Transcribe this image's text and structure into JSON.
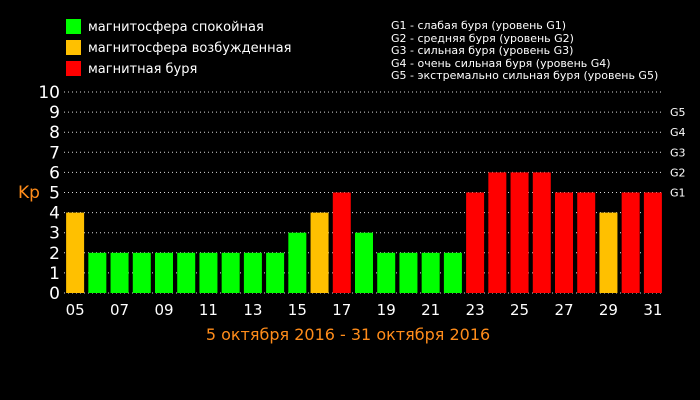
{
  "chart_data": {
    "type": "bar",
    "ylabel": "Kp",
    "ylim": [
      0,
      10
    ],
    "yticks": [
      "0",
      "1",
      "2",
      "3",
      "4",
      "5",
      "6",
      "7",
      "8",
      "9",
      "10"
    ],
    "grid": true,
    "date_range": "5 октября 2016 - 31 октября 2016",
    "categories": [
      "05",
      "06",
      "07",
      "08",
      "09",
      "10",
      "11",
      "12",
      "13",
      "14",
      "15",
      "16",
      "17",
      "18",
      "19",
      "20",
      "21",
      "22",
      "23",
      "24",
      "25",
      "26",
      "27",
      "28",
      "29",
      "30",
      "31"
    ],
    "x_tick_labels": [
      "05",
      "07",
      "09",
      "11",
      "13",
      "15",
      "17",
      "19",
      "21",
      "23",
      "25",
      "27",
      "29",
      "31"
    ],
    "values": [
      4,
      2,
      2,
      2,
      2,
      2,
      2,
      2,
      2,
      2,
      3,
      4,
      5,
      3,
      2,
      2,
      2,
      2,
      5,
      6,
      6,
      6,
      5,
      5,
      4,
      5,
      5
    ],
    "status": [
      "excited",
      "quiet",
      "quiet",
      "quiet",
      "quiet",
      "quiet",
      "quiet",
      "quiet",
      "quiet",
      "quiet",
      "quiet",
      "excited",
      "storm",
      "quiet",
      "quiet",
      "quiet",
      "quiet",
      "quiet",
      "storm",
      "storm",
      "storm",
      "storm",
      "storm",
      "storm",
      "excited",
      "storm",
      "storm"
    ],
    "colors": {
      "quiet": "#00ff00",
      "excited": "#ffc000",
      "storm": "#ff0000",
      "grid": "#ffffff",
      "axis_label": "#ff8c1a"
    },
    "legend": [
      {
        "key": "quiet",
        "label": "магнитосфера спокойная"
      },
      {
        "key": "excited",
        "label": "магнитосфера возбужденная"
      },
      {
        "key": "storm",
        "label": "магнитная буря"
      }
    ],
    "g_scale_legend": [
      "G1 - слабая буря (уровень G1)",
      "G2 - средняя буря (уровень G2)",
      "G3 - сильная буря (уровень G3)",
      "G4 - очень сильная буря (уровень G4)",
      "G5 - экстремально сильная буря (уровень G5)"
    ],
    "g_levels": [
      {
        "label": "G1",
        "kp": 5
      },
      {
        "label": "G2",
        "kp": 6
      },
      {
        "label": "G3",
        "kp": 7
      },
      {
        "label": "G4",
        "kp": 8
      },
      {
        "label": "G5",
        "kp": 9
      }
    ]
  }
}
